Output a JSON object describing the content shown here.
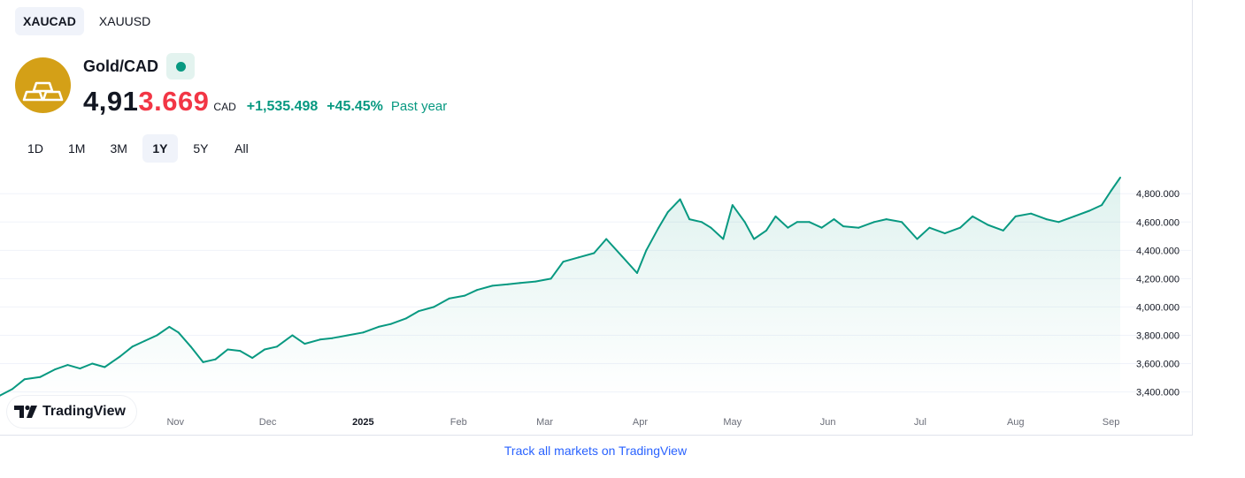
{
  "symbol_tabs": [
    "XAUCAD",
    "XAUUSD"
  ],
  "header": {
    "name": "Gold/CAD",
    "price_main": "4,91",
    "price_tail": "3.669",
    "currency": "CAD",
    "change_abs": "+1,535.498",
    "change_pct": "+45.45%",
    "change_period": "Past year"
  },
  "ranges": [
    "1D",
    "1M",
    "3M",
    "1Y",
    "5Y",
    "All"
  ],
  "colors": {
    "line": "#089981",
    "positive": "#089981",
    "price_tail": "#f23645",
    "logo": "#d4a017",
    "link": "#2962ff"
  },
  "icons": {
    "logo": "gold-bars-icon",
    "live": "live-dot-icon",
    "brand": "tradingview-logo-icon"
  },
  "branding": {
    "label": "TradingView"
  },
  "footer": {
    "link_text": "Track all markets on TradingView"
  },
  "chart_data": {
    "type": "area",
    "title": "",
    "xlabel": "",
    "ylabel": "",
    "ylim": [
      3360,
      4920
    ],
    "y_ticks": [
      3400,
      3600,
      3800,
      4000,
      4200,
      4400,
      4600,
      4800
    ],
    "y_tick_labels": [
      "3,400.000",
      "3,600.000",
      "3,800.000",
      "4,000.000",
      "4,200.000",
      "4,400.000",
      "4,600.000",
      "4,800.000"
    ],
    "x_ticks": [
      {
        "label": "Nov",
        "x": "2024-11-01",
        "bold": false
      },
      {
        "label": "Dec",
        "x": "2024-12-01",
        "bold": false
      },
      {
        "label": "2025",
        "x": "2025-01-01",
        "bold": true
      },
      {
        "label": "Feb",
        "x": "2025-02-01",
        "bold": false
      },
      {
        "label": "Mar",
        "x": "2025-03-01",
        "bold": false
      },
      {
        "label": "Apr",
        "x": "2025-04-01",
        "bold": false
      },
      {
        "label": "May",
        "x": "2025-05-01",
        "bold": false
      },
      {
        "label": "Jun",
        "x": "2025-06-01",
        "bold": false
      },
      {
        "label": "Jul",
        "x": "2025-07-01",
        "bold": false
      },
      {
        "label": "Aug",
        "x": "2025-08-01",
        "bold": false
      },
      {
        "label": "Sep",
        "x": "2025-09-01",
        "bold": false
      }
    ],
    "grid": true,
    "series": [
      {
        "x": [
          "2024-09-05",
          "2024-09-09",
          "2024-09-13",
          "2024-09-18",
          "2024-09-23",
          "2024-09-27",
          "2024-10-01",
          "2024-10-05",
          "2024-10-09",
          "2024-10-14",
          "2024-10-18",
          "2024-10-22",
          "2024-10-26",
          "2024-10-30",
          "2024-11-02",
          "2024-11-06",
          "2024-11-10",
          "2024-11-14",
          "2024-11-18",
          "2024-11-22",
          "2024-11-26",
          "2024-11-30",
          "2024-12-04",
          "2024-12-09",
          "2024-12-13",
          "2024-12-18",
          "2024-12-22",
          "2024-12-27",
          "2025-01-01",
          "2025-01-06",
          "2025-01-10",
          "2025-01-15",
          "2025-01-19",
          "2025-01-24",
          "2025-01-29",
          "2025-02-03",
          "2025-02-07",
          "2025-02-12",
          "2025-02-17",
          "2025-02-21",
          "2025-02-26",
          "2025-03-03",
          "2025-03-07",
          "2025-03-12",
          "2025-03-17",
          "2025-03-21",
          "2025-03-26",
          "2025-03-31",
          "2025-04-03",
          "2025-04-07",
          "2025-04-10",
          "2025-04-14",
          "2025-04-17",
          "2025-04-21",
          "2025-04-24",
          "2025-04-28",
          "2025-05-01",
          "2025-05-05",
          "2025-05-08",
          "2025-05-12",
          "2025-05-15",
          "2025-05-19",
          "2025-05-22",
          "2025-05-26",
          "2025-05-30",
          "2025-06-03",
          "2025-06-06",
          "2025-06-11",
          "2025-06-16",
          "2025-06-20",
          "2025-06-25",
          "2025-06-30",
          "2025-07-04",
          "2025-07-09",
          "2025-07-14",
          "2025-07-18",
          "2025-07-23",
          "2025-07-28",
          "2025-08-01",
          "2025-08-06",
          "2025-08-11",
          "2025-08-15",
          "2025-08-20",
          "2025-08-25",
          "2025-08-29",
          "2025-09-01",
          "2025-09-04"
        ],
        "values": [
          3375,
          3420,
          3490,
          3505,
          3560,
          3590,
          3565,
          3600,
          3575,
          3650,
          3720,
          3760,
          3800,
          3860,
          3820,
          3720,
          3610,
          3630,
          3700,
          3690,
          3640,
          3700,
          3720,
          3800,
          3740,
          3770,
          3780,
          3800,
          3820,
          3860,
          3880,
          3920,
          3970,
          4000,
          4060,
          4080,
          4120,
          4150,
          4160,
          4170,
          4180,
          4200,
          4320,
          4350,
          4380,
          4480,
          4360,
          4240,
          4400,
          4560,
          4670,
          4760,
          4620,
          4600,
          4560,
          4480,
          4720,
          4600,
          4480,
          4540,
          4640,
          4560,
          4600,
          4600,
          4560,
          4620,
          4570,
          4560,
          4600,
          4620,
          4600,
          4480,
          4560,
          4520,
          4560,
          4640,
          4580,
          4540,
          4640,
          4660,
          4620,
          4600,
          4640,
          4680,
          4720,
          4820,
          4913.669
        ]
      }
    ]
  }
}
